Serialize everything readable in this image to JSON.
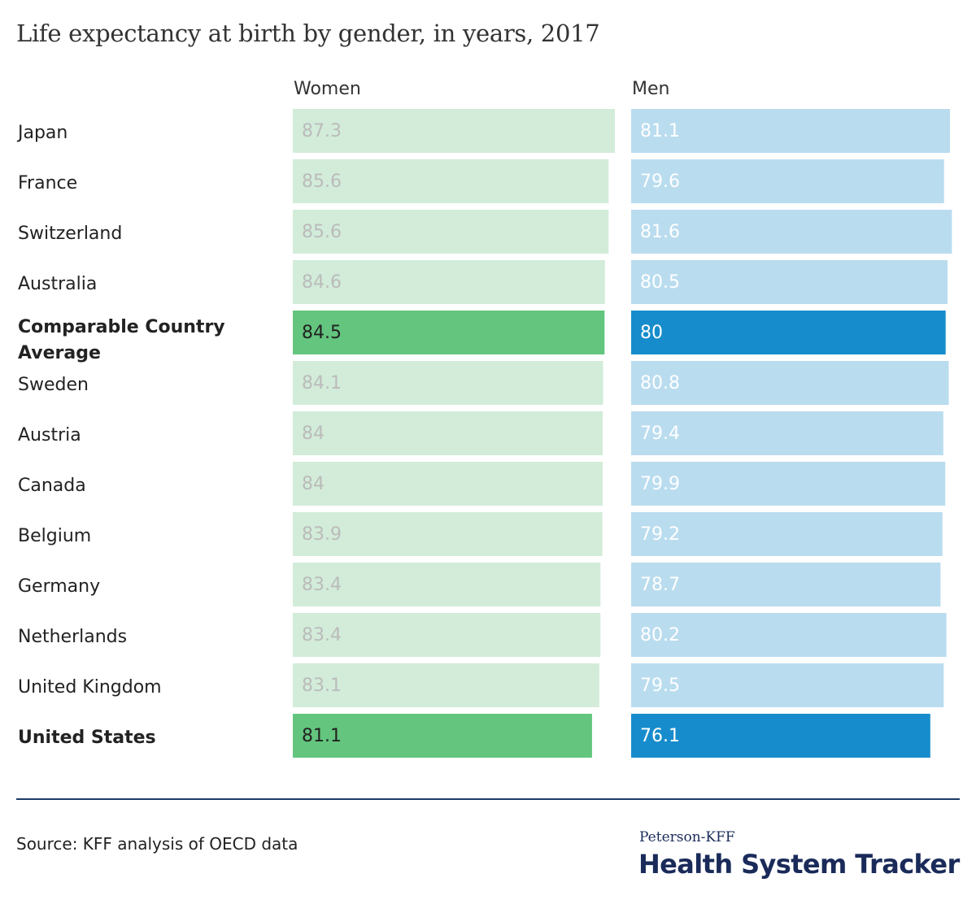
{
  "title": "Life expectancy at birth by gender, in years, 2017",
  "source": "Source: KFF analysis of OECD data",
  "brand": {
    "line1": "Peterson-KFF",
    "line2": "Health System Tracker"
  },
  "colors": {
    "women_light": "#d2ecd9",
    "women_dark": "#63c57e",
    "men_light": "#badcef",
    "men_dark": "#178ccc",
    "label_light_women": "#bbbbbb",
    "label_light_men": "#ffffff",
    "label_dark_women": "#222222",
    "label_dark_men": "#ffffff",
    "divider": "#1f3a68",
    "brand": "#1a2b5a"
  },
  "chart_data": {
    "type": "bar",
    "orientation": "horizontal",
    "title": "Life expectancy at birth by gender, in years, 2017",
    "categories": [
      "Japan",
      "France",
      "Switzerland",
      "Australia",
      "Comparable Country Average",
      "Sweden",
      "Austria",
      "Canada",
      "Belgium",
      "Germany",
      "Netherlands",
      "United Kingdom",
      "United States"
    ],
    "highlighted": [
      "Comparable Country Average",
      "United States"
    ],
    "series": [
      {
        "name": "Women",
        "values": [
          87.3,
          85.6,
          85.6,
          84.6,
          84.5,
          84.1,
          84,
          84,
          83.9,
          83.4,
          83.4,
          83.1,
          81.1
        ]
      },
      {
        "name": "Men",
        "values": [
          81.1,
          79.6,
          81.6,
          80.5,
          80,
          80.8,
          79.4,
          79.9,
          79.2,
          78.7,
          80.2,
          79.5,
          76.1
        ]
      }
    ],
    "value_labels": true,
    "axis_visible": false,
    "grid": false,
    "legend": "column headers"
  }
}
